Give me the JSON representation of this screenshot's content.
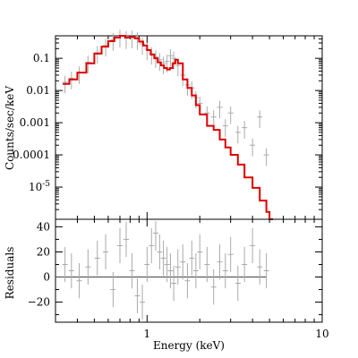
{
  "chart_data": [
    {
      "type": "line",
      "panel": "spectrum",
      "ylabel": "Counts/sec/keV",
      "x_scale": "log",
      "y_scale": "log",
      "xlim": [
        0.3,
        10
      ],
      "ylim": [
        1e-06,
        0.5
      ],
      "yticks": [
        {
          "value": 0.1,
          "label": "0.1"
        },
        {
          "value": 0.01,
          "label": "0.01"
        },
        {
          "value": 0.001,
          "label": "0.001"
        },
        {
          "value": 0.0001,
          "label": "0.0001"
        },
        {
          "value": 1e-05,
          "label": "10",
          "exp": "-5"
        }
      ],
      "series": [
        {
          "role": "model",
          "color": "#dd0000",
          "x": [
            0.33,
            0.36,
            0.4,
            0.45,
            0.5,
            0.55,
            0.6,
            0.65,
            0.7,
            0.75,
            0.8,
            0.85,
            0.9,
            0.95,
            1.0,
            1.05,
            1.1,
            1.15,
            1.2,
            1.25,
            1.3,
            1.35,
            1.4,
            1.45,
            1.5,
            1.6,
            1.7,
            1.8,
            1.9,
            2.0,
            2.2,
            2.4,
            2.6,
            2.8,
            3.0,
            3.3,
            3.6,
            4.0,
            4.4,
            4.8,
            5.0
          ],
          "y": [
            0.016,
            0.022,
            0.036,
            0.07,
            0.14,
            0.23,
            0.34,
            0.44,
            0.5,
            0.44,
            0.46,
            0.42,
            0.33,
            0.25,
            0.18,
            0.13,
            0.1,
            0.075,
            0.06,
            0.05,
            0.045,
            0.05,
            0.07,
            0.09,
            0.07,
            0.022,
            0.012,
            0.007,
            0.0035,
            0.0018,
            0.0008,
            0.0006,
            0.0003,
            0.00017,
            0.0001,
            5e-05,
            2e-05,
            9.5e-06,
            3.8e-06,
            1.7e-06,
            1e-06
          ]
        },
        {
          "role": "data",
          "color": "#aaaaaa",
          "x": [
            0.34,
            0.37,
            0.41,
            0.46,
            0.52,
            0.58,
            0.64,
            0.7,
            0.76,
            0.82,
            0.88,
            0.94,
            1.0,
            1.06,
            1.12,
            1.18,
            1.24,
            1.3,
            1.36,
            1.42,
            1.5,
            1.6,
            1.7,
            1.8,
            1.9,
            2.0,
            2.2,
            2.4,
            2.6,
            2.8,
            3.0,
            3.3,
            3.6,
            4.0,
            4.4,
            4.8
          ],
          "y": [
            0.018,
            0.024,
            0.035,
            0.075,
            0.15,
            0.25,
            0.38,
            0.48,
            0.43,
            0.45,
            0.4,
            0.28,
            0.19,
            0.14,
            0.11,
            0.09,
            0.07,
            0.08,
            0.12,
            0.1,
            0.06,
            0.03,
            0.015,
            0.012,
            0.006,
            0.004,
            0.002,
            0.0015,
            0.003,
            0.0008,
            0.002,
            0.0005,
            0.0007,
            0.0002,
            0.0015,
            0.0001
          ]
        }
      ]
    },
    {
      "type": "line",
      "panel": "residuals",
      "xlabel": "Energy (keV)",
      "ylabel": "Residuals",
      "x_scale": "log",
      "xlim": [
        0.3,
        10
      ],
      "ylim": [
        -36,
        46
      ],
      "yticks": [
        {
          "value": 40,
          "label": "40"
        },
        {
          "value": 20,
          "label": "20"
        },
        {
          "value": 0,
          "label": "0"
        },
        {
          "value": -20,
          "label": "−20"
        }
      ],
      "xticks": [
        {
          "value": 1,
          "label": "1"
        },
        {
          "value": 10,
          "label": "10"
        }
      ],
      "series": [
        {
          "role": "residuals",
          "color": "#aaaaaa",
          "x": [
            0.34,
            0.37,
            0.41,
            0.46,
            0.52,
            0.58,
            0.64,
            0.7,
            0.76,
            0.82,
            0.88,
            0.94,
            1.0,
            1.06,
            1.12,
            1.18,
            1.24,
            1.3,
            1.36,
            1.42,
            1.5,
            1.6,
            1.7,
            1.8,
            1.9,
            2.0,
            2.2,
            2.4,
            2.6,
            2.8,
            3.0,
            3.3,
            3.6,
            4.0,
            4.4,
            4.8
          ],
          "y": [
            10,
            5,
            -3,
            8,
            15,
            20,
            -10,
            25,
            30,
            5,
            -15,
            -20,
            10,
            25,
            35,
            20,
            15,
            10,
            5,
            -5,
            8,
            12,
            -3,
            15,
            5,
            20,
            10,
            -8,
            12,
            5,
            18,
            -5,
            10,
            25,
            8,
            5
          ]
        }
      ]
    }
  ]
}
